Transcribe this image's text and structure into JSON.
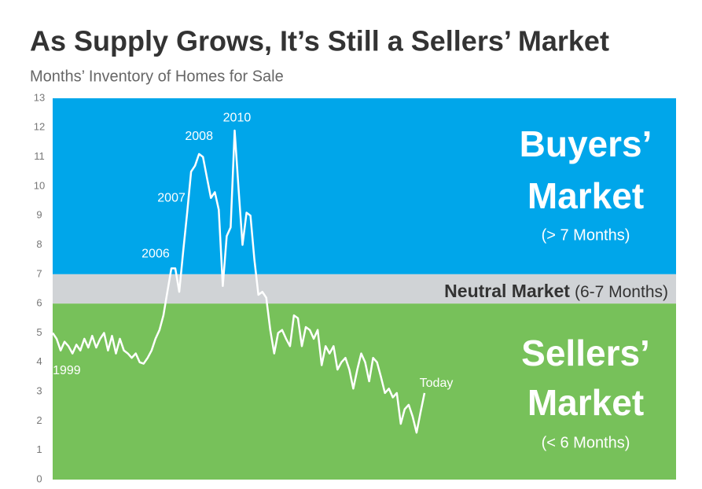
{
  "chart_data": {
    "type": "line",
    "title": "As Supply Grows, It’s Still a Sellers’ Market",
    "subtitle": "Months’ Inventory of Homes for Sale",
    "ylim": [
      0,
      13
    ],
    "yticks": [
      0,
      1,
      2,
      3,
      4,
      5,
      6,
      7,
      8,
      9,
      10,
      11,
      12,
      13
    ],
    "bands": [
      {
        "from": 7,
        "to": 13,
        "color": "#00a6ea",
        "lines": [
          "Buyers’",
          "Market",
          "(> 7 Months)"
        ]
      },
      {
        "from": 6,
        "to": 7,
        "color": "#d0d3d6",
        "lines": [
          "Neutral Market",
          "(6-7 Months)"
        ]
      },
      {
        "from": 0,
        "to": 6,
        "color": "#77c15a",
        "lines": [
          "Sellers’",
          "Market",
          "(< 6 Months)"
        ]
      }
    ],
    "categories": [
      null,
      null,
      "1999",
      null,
      null,
      null,
      null,
      null,
      null,
      null,
      null,
      null,
      null,
      null,
      null,
      null,
      null,
      null,
      null,
      null,
      null,
      null,
      null,
      null,
      null,
      null,
      null,
      null,
      null,
      null,
      "2006",
      null,
      null,
      null,
      "2007",
      null,
      null,
      "2008",
      null,
      null,
      null,
      null,
      null,
      null,
      null,
      null,
      "2010",
      null,
      null,
      null,
      null,
      null,
      null,
      null,
      null,
      null,
      null,
      null,
      null,
      null,
      null,
      null,
      null,
      null,
      null,
      null,
      null,
      null,
      null,
      null,
      null,
      null,
      null,
      null,
      null,
      null,
      null,
      null,
      null,
      null,
      null,
      null,
      null,
      null,
      null,
      null,
      null,
      null,
      null,
      null,
      null,
      null,
      null,
      null,
      "Today"
    ],
    "series": [
      {
        "color": "#ffffff",
        "values": [
          5.0,
          4.8,
          4.4,
          4.7,
          4.55,
          4.3,
          4.6,
          4.4,
          4.8,
          4.5,
          4.9,
          4.5,
          4.8,
          5.0,
          4.4,
          4.9,
          4.3,
          4.8,
          4.4,
          4.3,
          4.15,
          4.3,
          4.0,
          3.95,
          4.15,
          4.4,
          4.8,
          5.1,
          5.6,
          6.4,
          7.2,
          7.2,
          6.4,
          7.8,
          9.1,
          10.5,
          10.7,
          11.1,
          11.0,
          10.3,
          9.6,
          9.8,
          9.2,
          6.6,
          8.3,
          8.6,
          11.9,
          9.9,
          8.0,
          9.1,
          9.0,
          7.5,
          6.3,
          6.4,
          6.2,
          5.1,
          4.3,
          5.0,
          5.1,
          4.8,
          4.55,
          5.6,
          5.5,
          4.55,
          5.2,
          5.1,
          4.8,
          5.1,
          3.9,
          4.55,
          4.3,
          4.55,
          3.75,
          4.0,
          4.15,
          3.75,
          3.1,
          3.75,
          4.3,
          4.0,
          3.35,
          4.15,
          4.0,
          3.5,
          2.95,
          3.1,
          2.8,
          2.95,
          1.9,
          2.4,
          2.55,
          2.15,
          1.6,
          2.3,
          2.95
        ]
      }
    ]
  }
}
